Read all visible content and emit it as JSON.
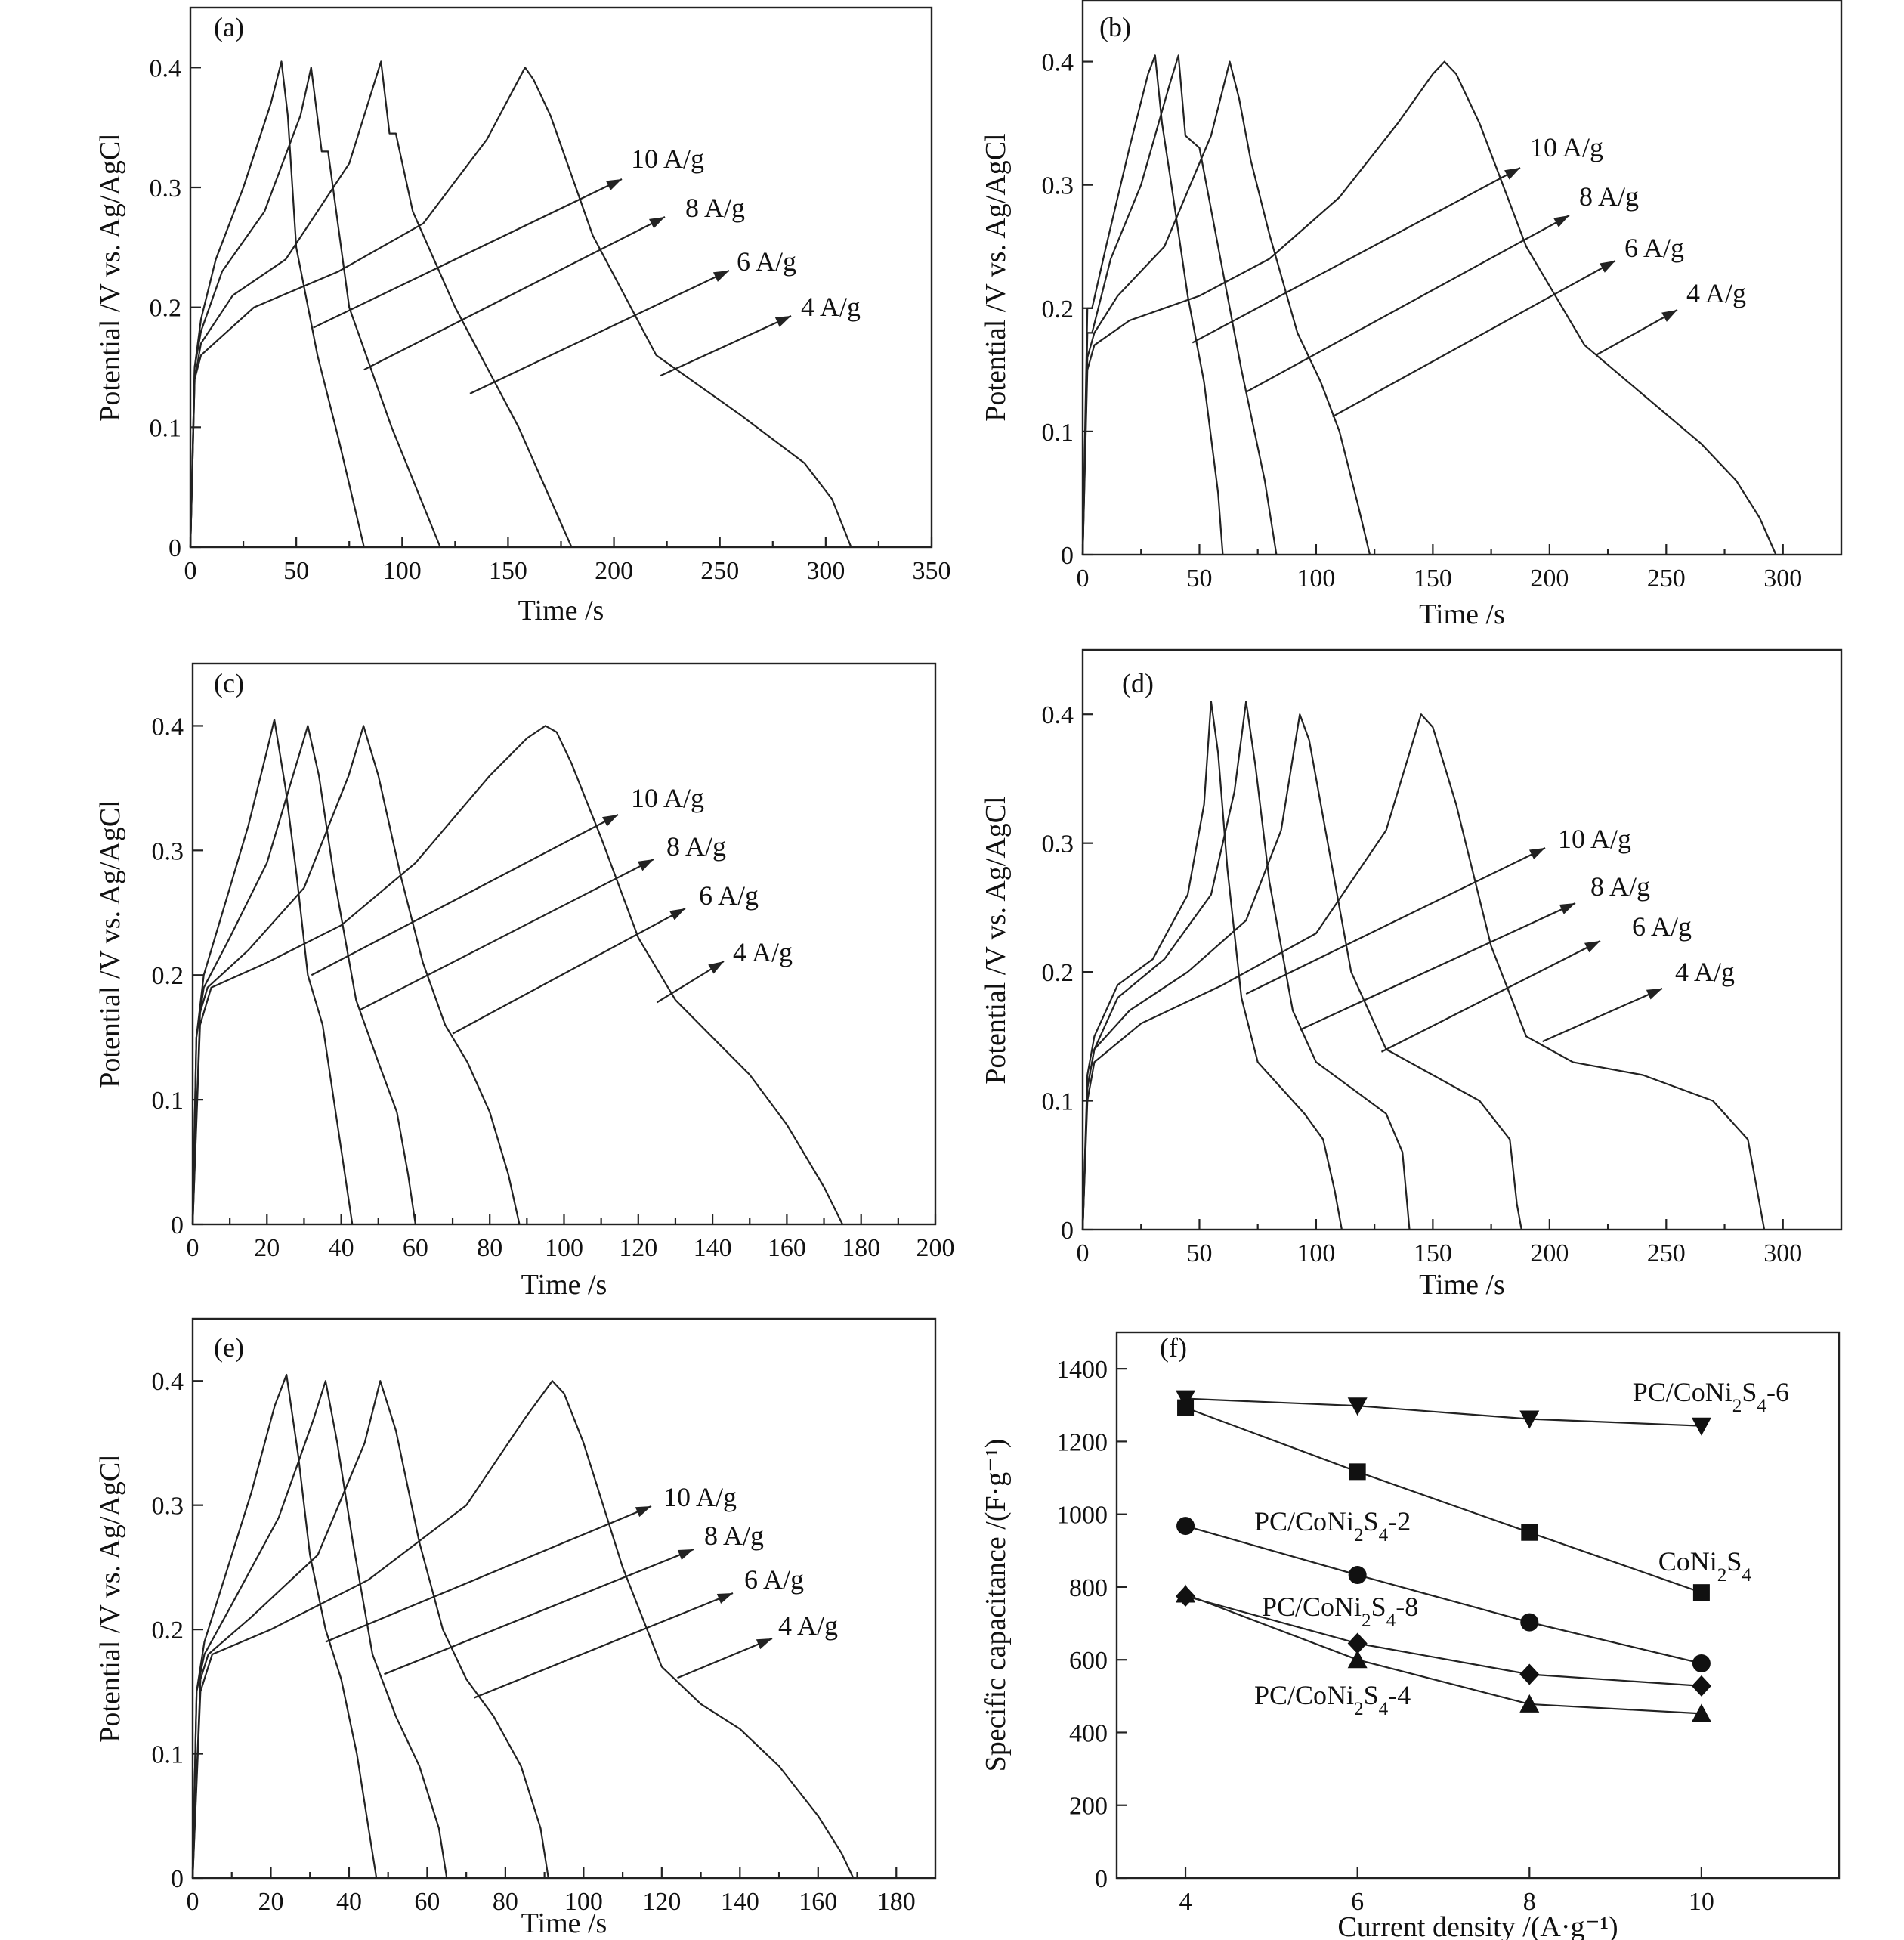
{
  "chart_data": [
    {
      "panel": "(a)",
      "type": "line",
      "xlabel": "Time /s",
      "ylabel": "Potential /V vs. Ag/AgCl",
      "xlim": [
        0,
        350
      ],
      "ylim": [
        0,
        0.45
      ],
      "xticks": [
        0,
        50,
        100,
        150,
        200,
        250,
        300,
        350
      ],
      "yticks": [
        0,
        0.1,
        0.2,
        0.3,
        0.4
      ],
      "series": [
        {
          "name": "10 A/g",
          "x": [
            0,
            2,
            5,
            12,
            25,
            38,
            43,
            46,
            50,
            60,
            70,
            82
          ],
          "y": [
            0,
            0.15,
            0.19,
            0.24,
            0.3,
            0.37,
            0.405,
            0.36,
            0.25,
            0.16,
            0.09,
            0
          ]
        },
        {
          "name": "8 A/g",
          "x": [
            0,
            2,
            5,
            15,
            35,
            52,
            57,
            62,
            65,
            75,
            95,
            118
          ],
          "y": [
            0,
            0.15,
            0.18,
            0.23,
            0.28,
            0.36,
            0.4,
            0.33,
            0.33,
            0.2,
            0.1,
            0
          ]
        },
        {
          "name": "6 A/g",
          "x": [
            0,
            2,
            5,
            20,
            45,
            75,
            90,
            94,
            97,
            105,
            125,
            155,
            180
          ],
          "y": [
            0,
            0.14,
            0.17,
            0.21,
            0.24,
            0.32,
            0.405,
            0.345,
            0.345,
            0.28,
            0.2,
            0.1,
            0
          ]
        },
        {
          "name": "4 A/g",
          "x": [
            0,
            2,
            5,
            30,
            70,
            110,
            140,
            158,
            162,
            170,
            190,
            220,
            260,
            290,
            303,
            312
          ],
          "y": [
            0,
            0.14,
            0.16,
            0.2,
            0.23,
            0.27,
            0.34,
            0.4,
            0.39,
            0.36,
            0.26,
            0.16,
            0.11,
            0.07,
            0.04,
            0
          ]
        }
      ],
      "annotations": [
        "10 A/g",
        "8 A/g",
        "6 A/g",
        "4 A/g"
      ]
    },
    {
      "panel": "(b)",
      "type": "line",
      "xlabel": "Time /s",
      "ylabel": "Potential /V vs. Ag/AgCl",
      "xlim": [
        0,
        325
      ],
      "ylim": [
        0,
        0.45
      ],
      "xticks": [
        0,
        50,
        100,
        150,
        200,
        250,
        300
      ],
      "yticks": [
        0,
        0.1,
        0.2,
        0.3,
        0.4
      ],
      "series": [
        {
          "name": "10 A/g",
          "x": [
            0,
            2,
            4,
            10,
            20,
            28,
            31,
            34,
            38,
            45,
            52,
            58,
            60
          ],
          "y": [
            0,
            0.2,
            0.2,
            0.25,
            0.33,
            0.39,
            0.405,
            0.35,
            0.3,
            0.21,
            0.14,
            0.05,
            0
          ]
        },
        {
          "name": "8 A/g",
          "x": [
            0,
            2,
            4,
            12,
            25,
            37,
            41,
            44,
            50,
            58,
            68,
            78,
            83
          ],
          "y": [
            0,
            0.18,
            0.18,
            0.24,
            0.3,
            0.38,
            0.405,
            0.34,
            0.33,
            0.25,
            0.15,
            0.06,
            0
          ]
        },
        {
          "name": "6 A/g",
          "x": [
            0,
            2,
            5,
            15,
            35,
            55,
            63,
            67,
            72,
            80,
            92,
            102,
            110,
            118,
            123
          ],
          "y": [
            0,
            0.16,
            0.18,
            0.21,
            0.25,
            0.34,
            0.4,
            0.37,
            0.32,
            0.26,
            0.18,
            0.14,
            0.1,
            0.04,
            0
          ]
        },
        {
          "name": "4 A/g",
          "x": [
            0,
            2,
            5,
            20,
            50,
            80,
            110,
            135,
            150,
            155,
            160,
            170,
            190,
            215,
            240,
            265,
            280,
            290,
            297
          ],
          "y": [
            0,
            0.15,
            0.17,
            0.19,
            0.21,
            0.24,
            0.29,
            0.35,
            0.39,
            0.4,
            0.39,
            0.35,
            0.25,
            0.17,
            0.13,
            0.09,
            0.06,
            0.03,
            0
          ]
        }
      ],
      "annotations": [
        "10 A/g",
        "8 A/g",
        "6 A/g",
        "4 A/g"
      ]
    },
    {
      "panel": "(c)",
      "type": "line",
      "xlabel": "Time /s",
      "ylabel": "Potential /V vs. Ag/AgCl",
      "xlim": [
        0,
        200
      ],
      "ylim": [
        0,
        0.45
      ],
      "xticks": [
        0,
        20,
        40,
        60,
        80,
        100,
        120,
        140,
        160,
        180,
        200
      ],
      "yticks": [
        0,
        0.1,
        0.2,
        0.3,
        0.4
      ],
      "series": [
        {
          "name": "10 A/g",
          "x": [
            0,
            1,
            3,
            8,
            15,
            20,
            22,
            25,
            28,
            31,
            35,
            40,
            42,
            43
          ],
          "y": [
            0,
            0.15,
            0.2,
            0.25,
            0.32,
            0.38,
            0.405,
            0.35,
            0.28,
            0.2,
            0.16,
            0.06,
            0.02,
            0
          ]
        },
        {
          "name": "8 A/g",
          "x": [
            0,
            1,
            3,
            10,
            20,
            28,
            31,
            34,
            38,
            44,
            50,
            55,
            58,
            60
          ],
          "y": [
            0,
            0.15,
            0.19,
            0.23,
            0.29,
            0.37,
            0.4,
            0.36,
            0.28,
            0.18,
            0.13,
            0.09,
            0.04,
            0
          ]
        },
        {
          "name": "6 A/g",
          "x": [
            0,
            2,
            4,
            15,
            30,
            42,
            46,
            50,
            56,
            62,
            68,
            74,
            80,
            85,
            88
          ],
          "y": [
            0,
            0.17,
            0.19,
            0.22,
            0.27,
            0.36,
            0.4,
            0.36,
            0.28,
            0.21,
            0.16,
            0.13,
            0.09,
            0.04,
            0
          ]
        },
        {
          "name": "4 A/g",
          "x": [
            0,
            2,
            5,
            20,
            40,
            60,
            80,
            90,
            95,
            98,
            102,
            110,
            120,
            130,
            140,
            150,
            160,
            170,
            175
          ],
          "y": [
            0,
            0.16,
            0.19,
            0.21,
            0.24,
            0.29,
            0.36,
            0.39,
            0.4,
            0.395,
            0.37,
            0.31,
            0.23,
            0.18,
            0.15,
            0.12,
            0.08,
            0.03,
            0
          ]
        }
      ],
      "annotations": [
        "10 A/g",
        "8 A/g",
        "6 A/g",
        "4 A/g"
      ]
    },
    {
      "panel": "(d)",
      "type": "line",
      "xlabel": "Time /s",
      "ylabel": "Potential /V vs. Ag/AgCl",
      "xlim": [
        0,
        325
      ],
      "ylim": [
        0,
        0.45
      ],
      "xticks": [
        0,
        50,
        100,
        150,
        200,
        250,
        300
      ],
      "yticks": [
        0,
        0.1,
        0.2,
        0.3,
        0.4
      ],
      "series": [
        {
          "name": "10 A/g",
          "x": [
            0,
            2,
            5,
            15,
            30,
            45,
            52,
            55,
            58,
            62,
            68,
            75,
            85,
            95,
            103,
            108,
            110,
            111
          ],
          "y": [
            0,
            0.12,
            0.15,
            0.19,
            0.21,
            0.26,
            0.33,
            0.41,
            0.37,
            0.28,
            0.18,
            0.13,
            0.11,
            0.09,
            0.07,
            0.03,
            0.01,
            0
          ]
        },
        {
          "name": "8 A/g",
          "x": [
            0,
            2,
            5,
            15,
            35,
            55,
            65,
            70,
            74,
            80,
            90,
            100,
            115,
            130,
            137,
            140
          ],
          "y": [
            0,
            0.11,
            0.14,
            0.18,
            0.21,
            0.26,
            0.34,
            0.41,
            0.36,
            0.27,
            0.17,
            0.13,
            0.11,
            0.09,
            0.06,
            0
          ]
        },
        {
          "name": "6 A/g",
          "x": [
            0,
            2,
            5,
            20,
            45,
            70,
            85,
            93,
            97,
            105,
            115,
            130,
            150,
            170,
            183,
            186,
            188
          ],
          "y": [
            0,
            0.11,
            0.14,
            0.17,
            0.2,
            0.24,
            0.31,
            0.4,
            0.38,
            0.3,
            0.2,
            0.14,
            0.12,
            0.1,
            0.07,
            0.02,
            0
          ]
        },
        {
          "name": "4 A/g",
          "x": [
            0,
            2,
            5,
            25,
            60,
            100,
            130,
            145,
            150,
            160,
            175,
            190,
            210,
            240,
            270,
            285,
            290,
            292
          ],
          "y": [
            0,
            0.1,
            0.13,
            0.16,
            0.19,
            0.23,
            0.31,
            0.4,
            0.39,
            0.33,
            0.22,
            0.15,
            0.13,
            0.12,
            0.1,
            0.07,
            0.02,
            0
          ]
        }
      ],
      "annotations": [
        "10 A/g",
        "8 A/g",
        "6 A/g",
        "4 A/g"
      ]
    },
    {
      "panel": "(e)",
      "type": "line",
      "xlabel": "Time /s",
      "ylabel": "Potential /V vs. Ag/AgCl",
      "xlim": [
        0,
        190
      ],
      "ylim": [
        0,
        0.45
      ],
      "xticks": [
        0,
        20,
        40,
        60,
        80,
        100,
        120,
        140,
        160,
        180
      ],
      "yticks": [
        0,
        0.1,
        0.2,
        0.3,
        0.4
      ],
      "series": [
        {
          "name": "10 A/g",
          "x": [
            0,
            1,
            3,
            8,
            15,
            21,
            24,
            27,
            30,
            34,
            38,
            42,
            45,
            47
          ],
          "y": [
            0,
            0.15,
            0.19,
            0.24,
            0.31,
            0.38,
            0.405,
            0.34,
            0.26,
            0.2,
            0.16,
            0.1,
            0.04,
            0
          ]
        },
        {
          "name": "8 A/g",
          "x": [
            0,
            1,
            3,
            10,
            22,
            31,
            34,
            37,
            41,
            46,
            52,
            58,
            63,
            65
          ],
          "y": [
            0,
            0.15,
            0.18,
            0.22,
            0.29,
            0.37,
            0.4,
            0.35,
            0.27,
            0.18,
            0.13,
            0.09,
            0.04,
            0
          ]
        },
        {
          "name": "6 A/g",
          "x": [
            0,
            2,
            4,
            15,
            32,
            44,
            48,
            52,
            58,
            64,
            70,
            77,
            84,
            89,
            91
          ],
          "y": [
            0,
            0.16,
            0.18,
            0.21,
            0.26,
            0.35,
            0.4,
            0.36,
            0.27,
            0.2,
            0.16,
            0.13,
            0.09,
            0.04,
            0
          ]
        },
        {
          "name": "4 A/g",
          "x": [
            0,
            2,
            5,
            20,
            45,
            70,
            85,
            92,
            95,
            100,
            110,
            120,
            130,
            140,
            150,
            160,
            166,
            169
          ],
          "y": [
            0,
            0.15,
            0.18,
            0.2,
            0.24,
            0.3,
            0.37,
            0.4,
            0.39,
            0.35,
            0.25,
            0.17,
            0.14,
            0.12,
            0.09,
            0.05,
            0.02,
            0
          ]
        }
      ],
      "annotations": [
        "10 A/g",
        "8 A/g",
        "6 A/g",
        "4 A/g"
      ]
    },
    {
      "panel": "(f)",
      "type": "line",
      "xlabel": "Current density /(A·g⁻¹)",
      "ylabel": "Specific capacitance /(F·g⁻¹)",
      "xlim": [
        3.2,
        11.6
      ],
      "ylim": [
        0,
        1500
      ],
      "xticks": [
        4,
        6,
        8,
        10
      ],
      "yticks": [
        0,
        200,
        400,
        600,
        800,
        1000,
        1200,
        1400
      ],
      "categories": [
        4,
        6,
        8,
        10
      ],
      "series": [
        {
          "name": "PC/CoNi₂S₄-6",
          "marker": "triangle-down",
          "values": [
            1318,
            1298,
            1262,
            1243
          ]
        },
        {
          "name": "CoNi₂S₄",
          "marker": "square",
          "values": [
            1293,
            1117,
            950,
            785
          ]
        },
        {
          "name": "PC/CoNi₂S₄-2",
          "marker": "circle",
          "values": [
            968,
            833,
            703,
            590
          ]
        },
        {
          "name": "PC/CoNi₂S₄-8",
          "marker": "diamond",
          "values": [
            775,
            645,
            560,
            528
          ]
        },
        {
          "name": "PC/CoNi₂S₄-4",
          "marker": "triangle-up",
          "values": [
            780,
            600,
            478,
            452
          ]
        }
      ]
    }
  ]
}
